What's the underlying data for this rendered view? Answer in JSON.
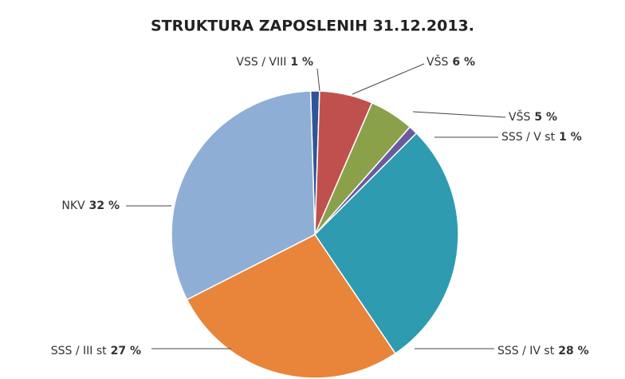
{
  "chart_data": {
    "type": "pie",
    "title": "STRUKTURA ZAPOSLENIH 31.12.2013.",
    "categories": [
      "VSS / VIII",
      "VŠS",
      "VŠS",
      "SSS / V st",
      "SSS / IV st",
      "SSS / III st",
      "NKV"
    ],
    "values": [
      1,
      6,
      5,
      1,
      28,
      27,
      32
    ],
    "value_labels": [
      "1 %",
      "6 %",
      "5 %",
      "1 %",
      "28 %",
      "27 %",
      "32 %"
    ],
    "colors": [
      "#2f5597",
      "#c0504d",
      "#8aa14a",
      "#6b5b9e",
      "#2e9bb0",
      "#e8853a",
      "#8eaed6"
    ]
  }
}
